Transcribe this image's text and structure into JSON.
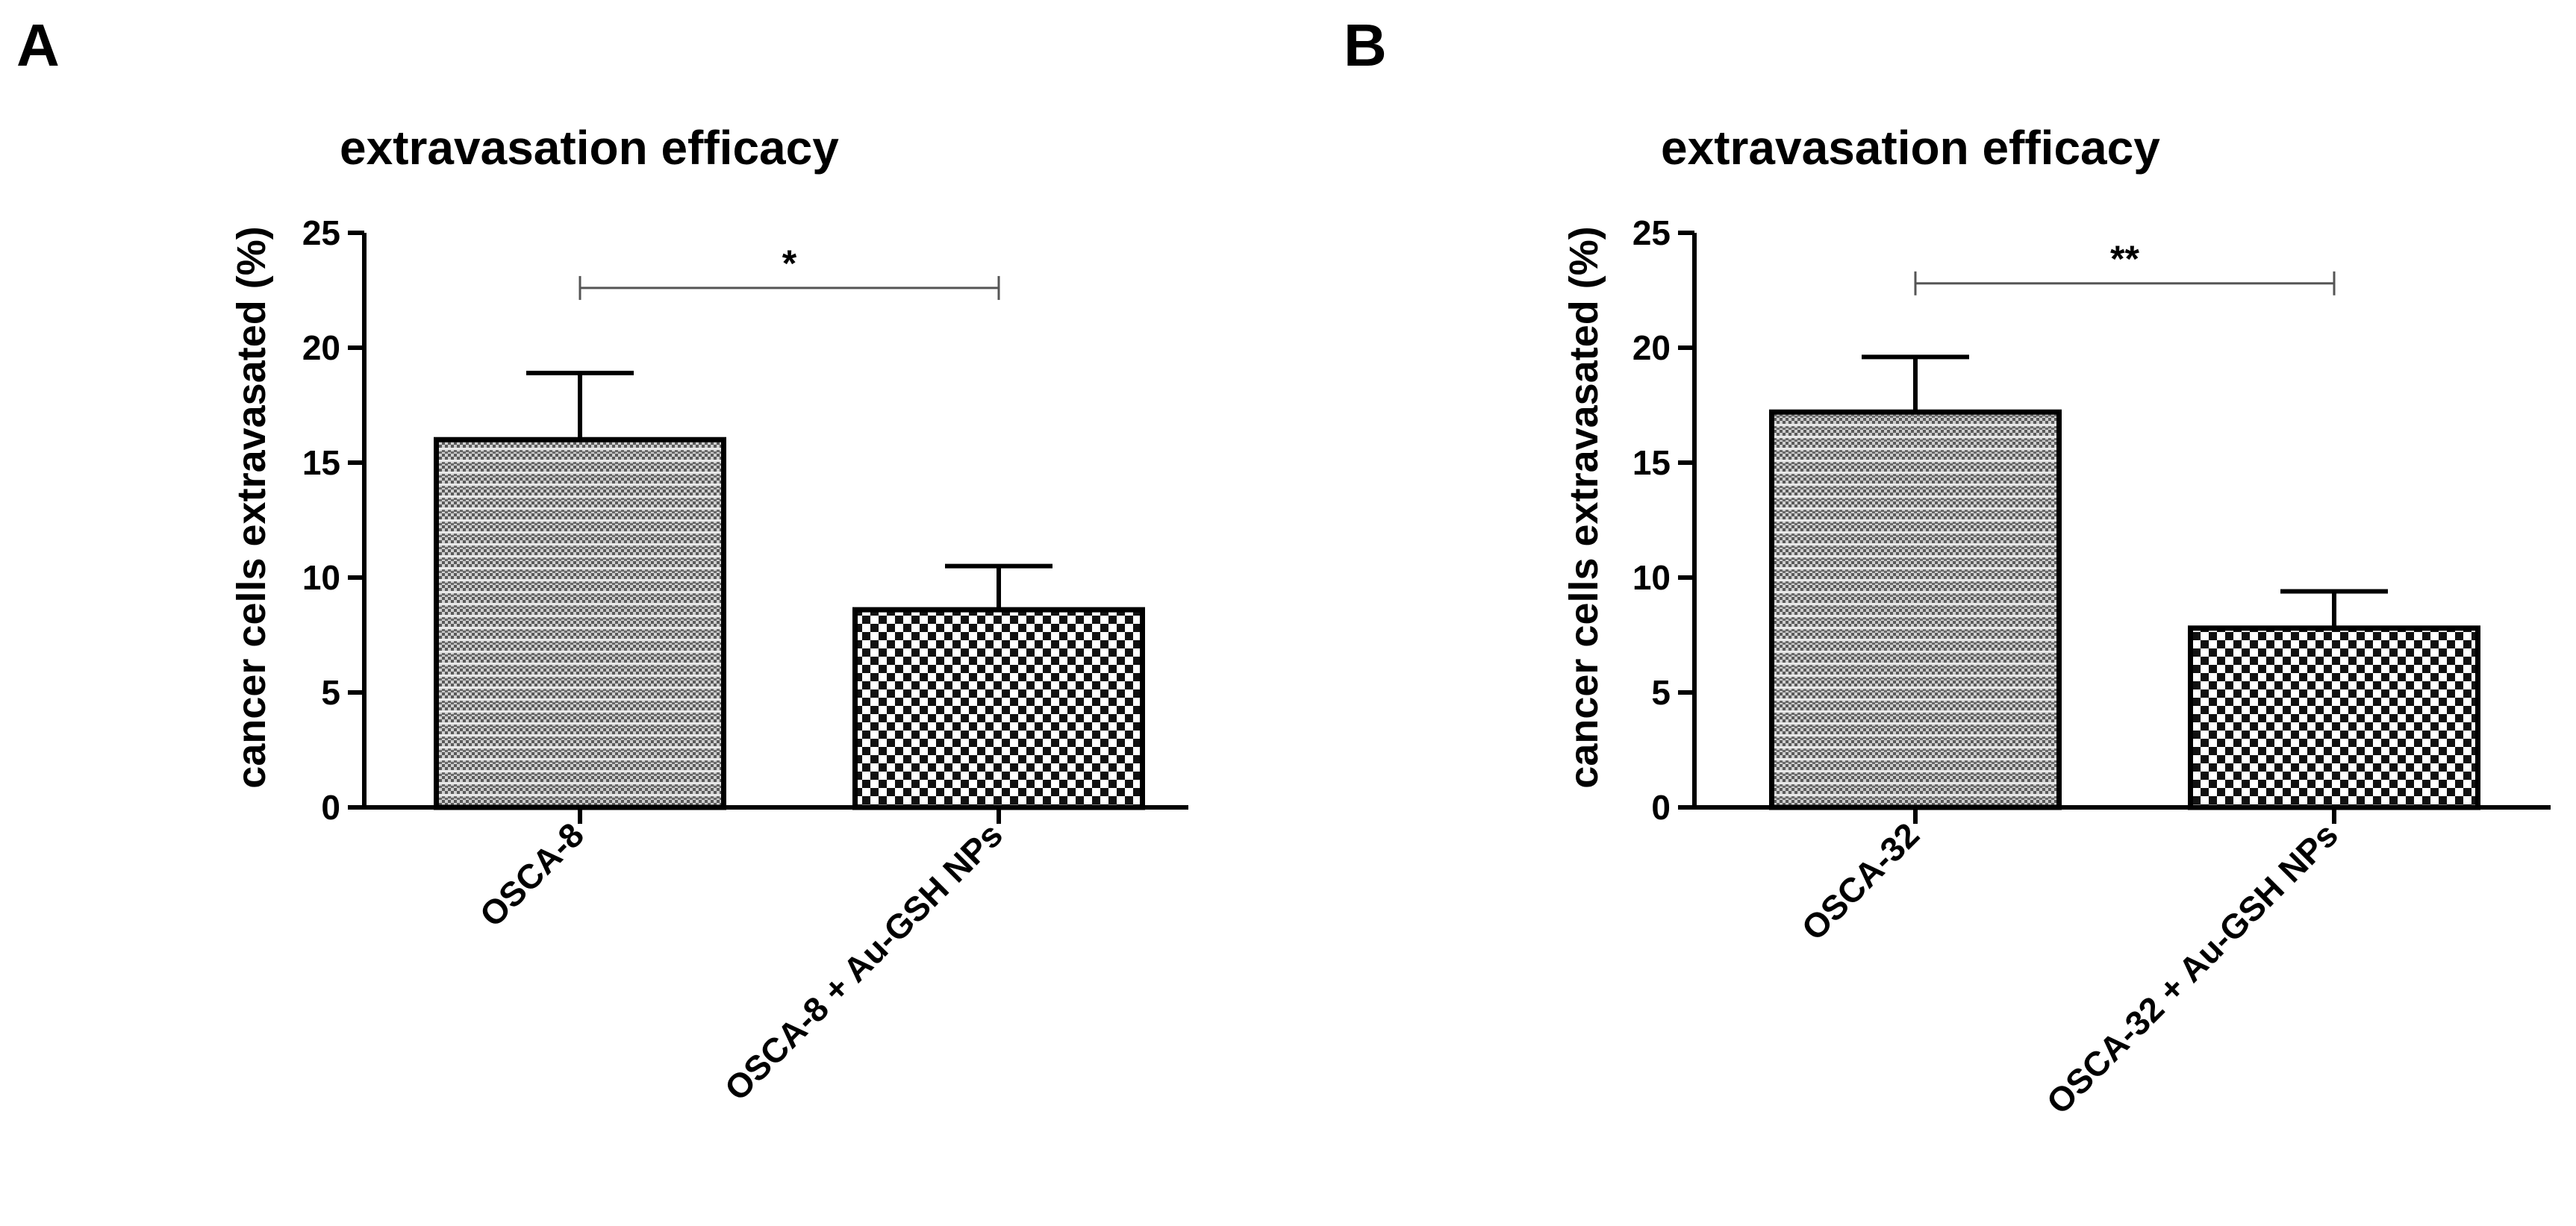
{
  "chart_data": [
    {
      "panel": "A",
      "type": "bar",
      "title": "extravasation efficacy",
      "xlabel": "",
      "ylabel": "cancer cells extravasated (%)",
      "ylim": [
        0,
        25
      ],
      "yticks": [
        0,
        5,
        10,
        15,
        20,
        25
      ],
      "categories": [
        "OSCA-8",
        "OSCA-8 + Au-GSH NPs"
      ],
      "values": [
        16.0,
        8.6
      ],
      "errors": [
        2.9,
        1.9
      ],
      "fill_patterns": [
        "stripes",
        "checker"
      ],
      "grid": false,
      "significance": {
        "from": 0,
        "to": 1,
        "label": "*",
        "y": 22.6
      }
    },
    {
      "panel": "B",
      "type": "bar",
      "title": "extravasation efficacy",
      "xlabel": "",
      "ylabel": "cancer cells extravasated (%)",
      "ylim": [
        0,
        25
      ],
      "yticks": [
        0,
        5,
        10,
        15,
        20,
        25
      ],
      "categories": [
        "OSCA-32",
        "OSCA-32 + Au-GSH NPs"
      ],
      "values": [
        17.2,
        7.8
      ],
      "errors": [
        2.4,
        1.6
      ],
      "fill_patterns": [
        "stripes",
        "checker"
      ],
      "grid": false,
      "significance": {
        "from": 0,
        "to": 1,
        "label": "**",
        "y": 22.8
      }
    }
  ]
}
